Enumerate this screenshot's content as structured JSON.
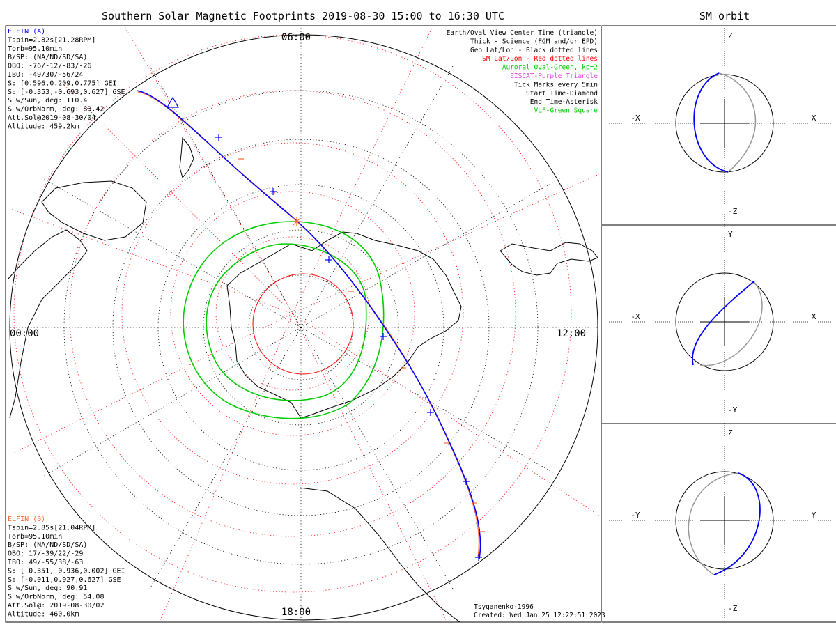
{
  "main": {
    "title": "Southern Solar Magnetic Footprints 2019-08-30 15:00 to 16:30 UTC",
    "hour_labels": {
      "top": "06:00",
      "right": "12:00",
      "bottom": "18:00",
      "left": "00:00"
    }
  },
  "legend": [
    {
      "text": "Earth/Oval View Center Time (triangle)",
      "color": "#000000"
    },
    {
      "text": "Thick - Science (FGM and/or EPD)",
      "color": "#000000"
    },
    {
      "text": "Geo Lat/Lon - Black dotted lines",
      "color": "#000000"
    },
    {
      "text": "SM Lat/Lon - Red dotted lines",
      "color": "#ff0000"
    },
    {
      "text": "Auroral Oval-Green, kp=2",
      "color": "#00cc00"
    },
    {
      "text": "EISCAT-Purple Triangle",
      "color": "#dd44dd"
    },
    {
      "text": "Tick Marks every 5min",
      "color": "#000000"
    },
    {
      "text": "Start Time-Diamond",
      "color": "#000000"
    },
    {
      "text": "End Time-Asterisk",
      "color": "#000000"
    },
    {
      "text": "VLF-Green Square",
      "color": "#00cc00"
    }
  ],
  "probe_a": {
    "name": "ELFIN (A)",
    "color": "#0000ff",
    "lines": [
      "Tspin=2.82s[21.28RPM]",
      "Torb=95.10min",
      "B/SP: (NA/ND/SD/SA)",
      "OBO: -76/-12/-83/-26",
      "IBO: -49/30/-56/24",
      "S: [0.596,0.209,0.775] GEI",
      "S: [-0.353,-0.693,0.627] GSE",
      "S w/Sun, deg: 110.4",
      "S w/OrbNorm, deg: 83.42",
      "Att.Sol@2019-08-30/04",
      "Altitude: 459.2km"
    ]
  },
  "probe_b": {
    "name": "ELFIN (B)",
    "color": "#ff6633",
    "lines": [
      "Tspin=2.85s[21.04RPM]",
      "Torb=95.10min",
      "B/SP: (NA/ND/SD/SA)",
      "OBO: 17/-39/22/-29",
      "IBO: 49/-55/38/-63",
      "S: [-0.351,-0.936,0.002] GEI",
      "S: [-0.011,0.927,0.627] GSE",
      "S w/Sun, deg: 90.91",
      "S w/OrbNorm, deg: 54.08",
      "Att.Sol@: 2019-08-30/02",
      "Altitude: 460.0km"
    ]
  },
  "footer": {
    "model": "Tsyganenko-1996",
    "created": "Created: Wed Jan 25 12:22:51 2023"
  },
  "orbit": {
    "title": "SM orbit",
    "panels": [
      {
        "top": "Z",
        "bottom": "-Z",
        "left": "-X",
        "right": "X"
      },
      {
        "top": "Y",
        "bottom": "-Y",
        "left": "-X",
        "right": "X"
      },
      {
        "top": "Z",
        "bottom": "-Z",
        "left": "-Y",
        "right": "Y"
      }
    ]
  },
  "colors": {
    "probe_a": "#0000ff",
    "probe_b": "#ff6633",
    "sm_grid": "#ff0000",
    "oval": "#00cc00",
    "orbit_grey": "#999999"
  }
}
